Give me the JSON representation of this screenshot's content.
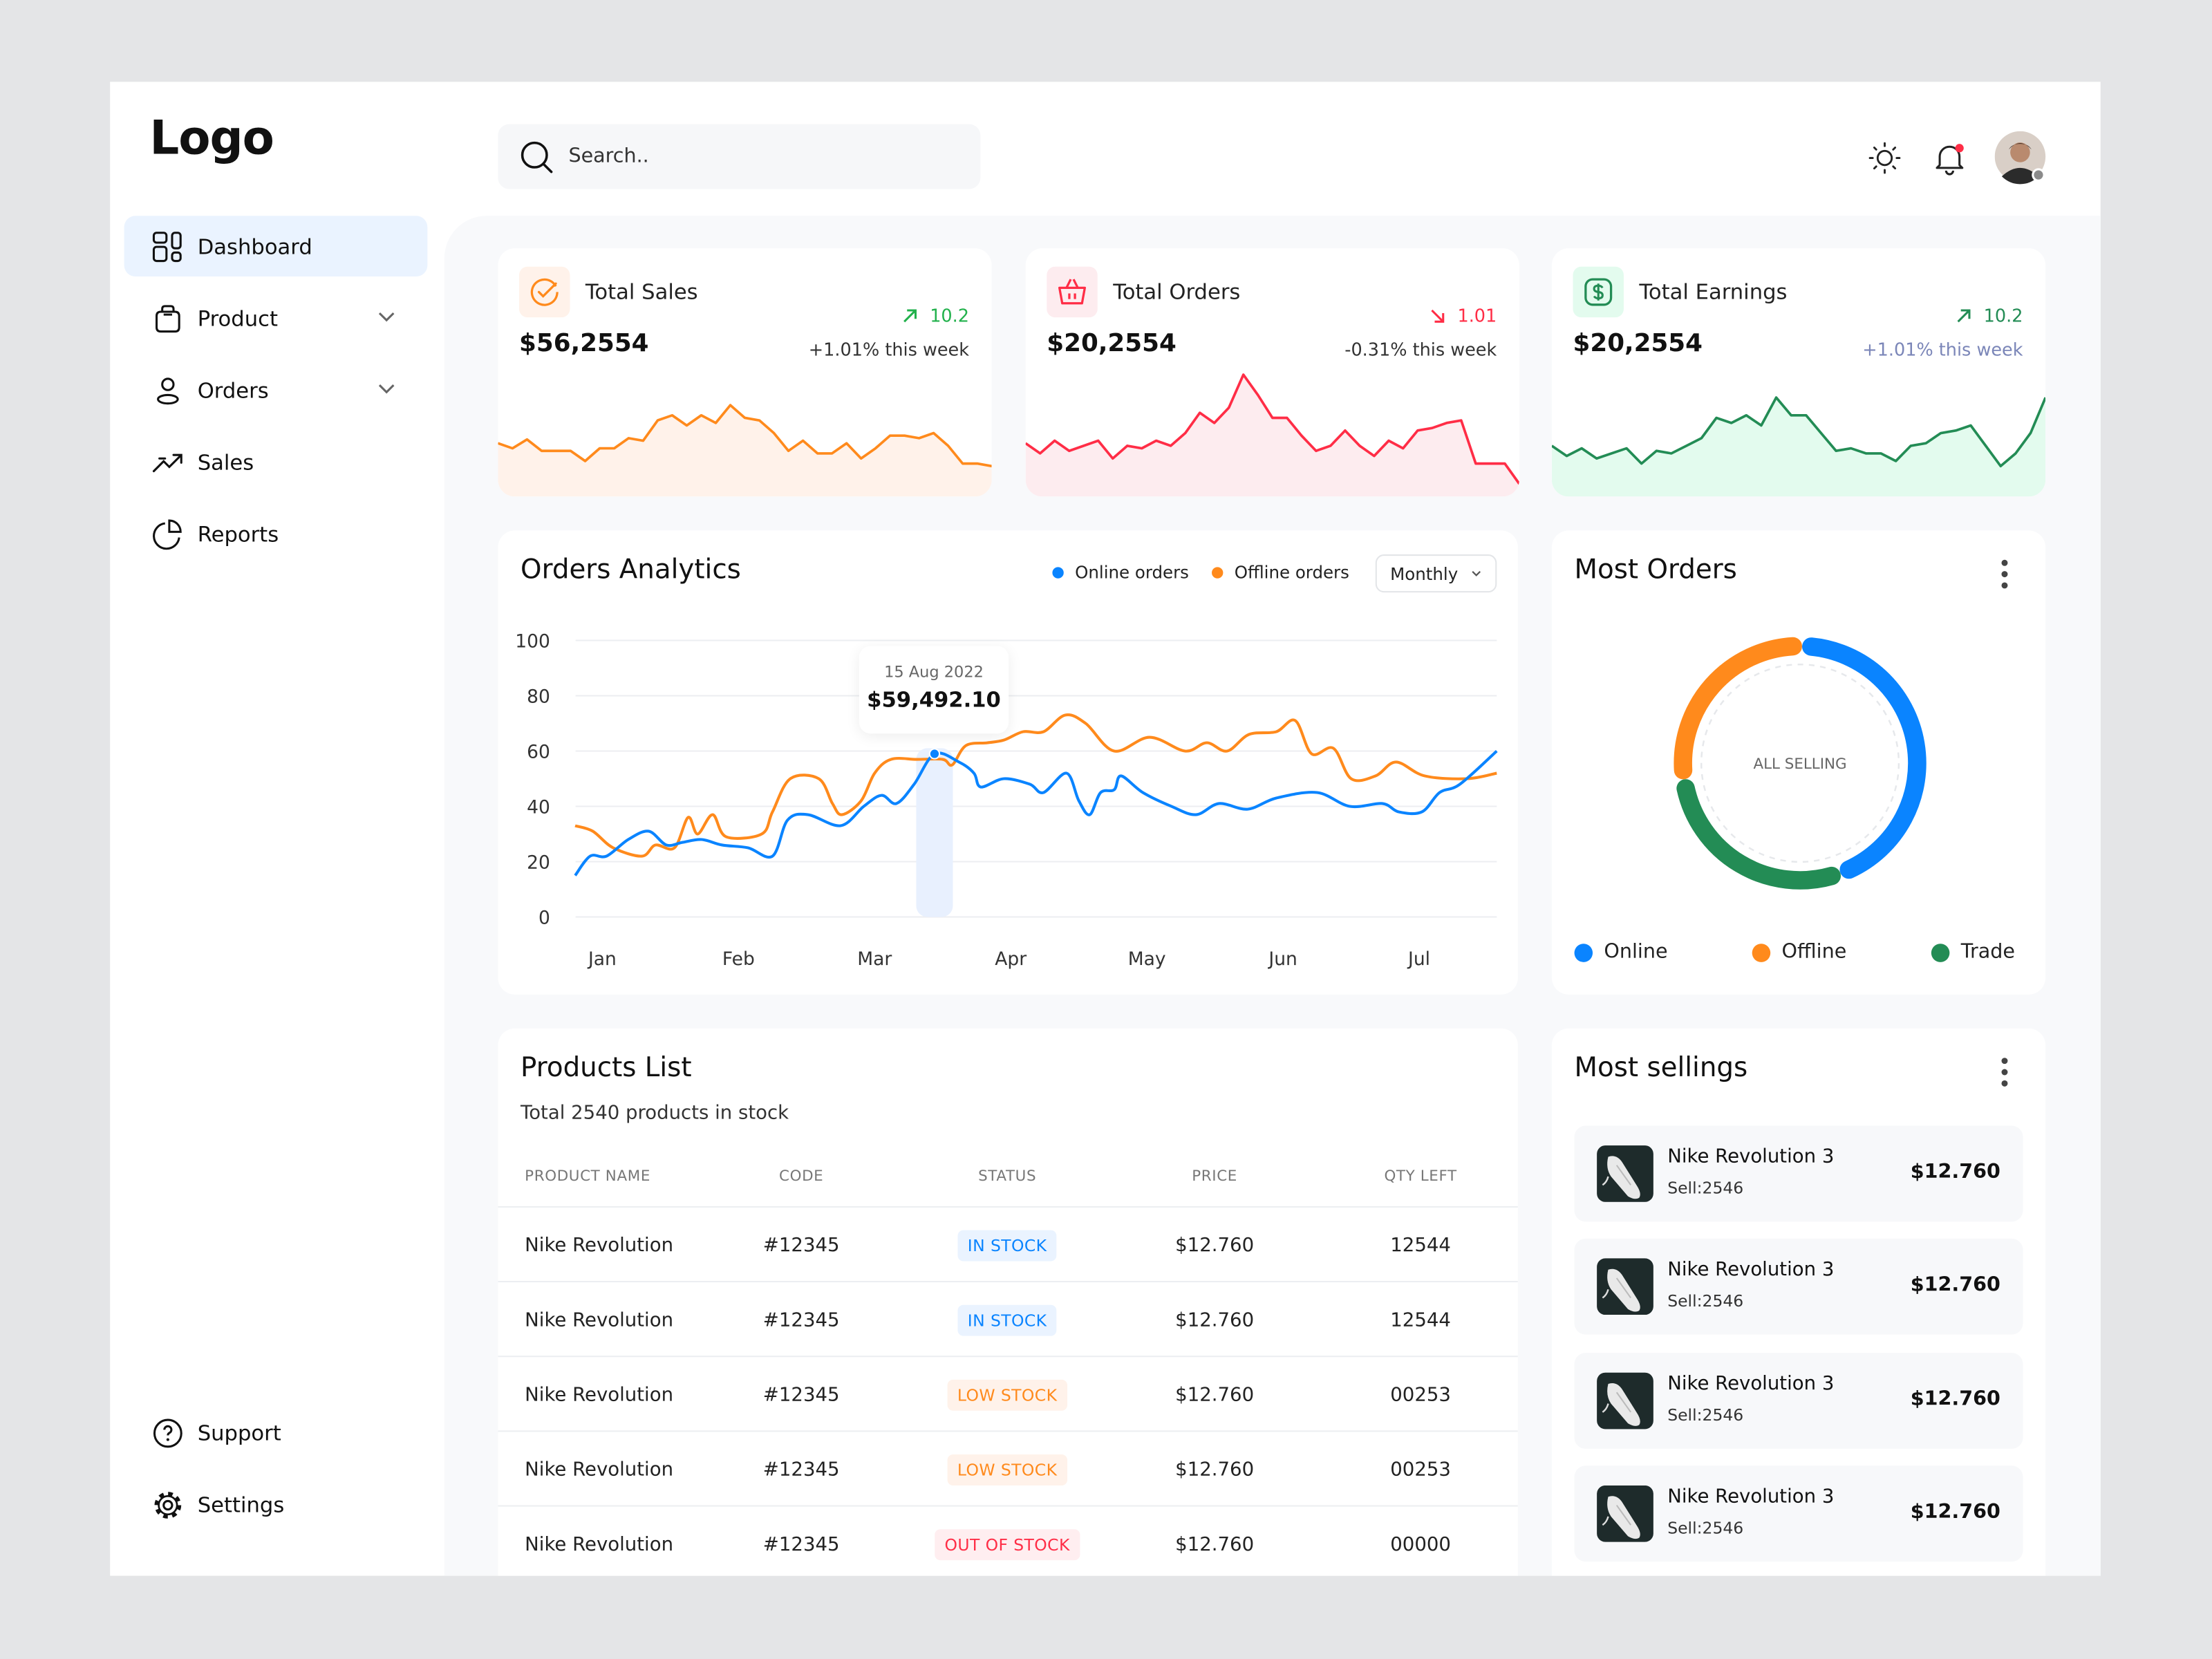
{
  "brand": {
    "logo": "Logo"
  },
  "header": {
    "search_placeholder": "Search..",
    "icons": [
      "sun-icon",
      "bell-icon",
      "avatar"
    ],
    "notification_dot_color": "#ff2d46"
  },
  "sidebar": {
    "items": [
      {
        "label": "Dashboard",
        "icon": "dashboard-icon",
        "active": true
      },
      {
        "label": "Product",
        "icon": "bag-icon",
        "expandable": true
      },
      {
        "label": "Orders",
        "icon": "user-icon",
        "expandable": true
      },
      {
        "label": "Sales",
        "icon": "trend-icon"
      },
      {
        "label": "Reports",
        "icon": "pie-icon"
      }
    ],
    "bottom": [
      {
        "label": "Support",
        "icon": "help-icon"
      },
      {
        "label": "Settings",
        "icon": "gear-icon"
      }
    ]
  },
  "colors": {
    "blue": "#0a84ff",
    "orange": "#ff8a1c",
    "red": "#ff2d46",
    "green": "#238c55",
    "trend_up": "#22b14c",
    "active_bg": "#eaf3ff"
  },
  "stats": [
    {
      "title": "Total Sales",
      "icon": "check-circle-icon",
      "trend_dir": "up",
      "trend": "10.2",
      "value": "$56,2554",
      "sub": "+1.01% this week",
      "color": "#ff8a1c",
      "fill": "#fff2ea",
      "trend_color": "#22b14c",
      "sub_color": "#333333"
    },
    {
      "title": "Total Orders",
      "icon": "basket-icon",
      "trend_dir": "down",
      "trend": "1.01",
      "value": "$20,2554",
      "sub": "-0.31% this week",
      "color": "#ff2d46",
      "fill": "#fdecef",
      "trend_color": "#ff2d46",
      "sub_color": "#333333"
    },
    {
      "title": "Total Earnings",
      "icon": "dollar-icon",
      "trend_dir": "up",
      "trend": "10.2",
      "value": "$20,2554",
      "sub": "+1.01% this week",
      "color": "#238c55",
      "fill": "#e3fbee",
      "trend_color": "#238c55",
      "sub_color": "#7b86b8"
    }
  ],
  "sparklines": [
    [
      42,
      38,
      45,
      36,
      36,
      36,
      28,
      38,
      38,
      46,
      44,
      60,
      64,
      56,
      64,
      58,
      72,
      62,
      60,
      50,
      36,
      44,
      34,
      34,
      42,
      30,
      38,
      48,
      48,
      46,
      50,
      40,
      26,
      26,
      24
    ],
    [
      42,
      34,
      44,
      36,
      40,
      44,
      30,
      40,
      38,
      44,
      40,
      50,
      66,
      58,
      70,
      96,
      80,
      62,
      62,
      48,
      36,
      40,
      52,
      40,
      32,
      44,
      38,
      52,
      54,
      58,
      60,
      26,
      26,
      26,
      10
    ],
    [
      40,
      32,
      38,
      30,
      34,
      38,
      26,
      36,
      34,
      40,
      46,
      62,
      58,
      64,
      56,
      78,
      64,
      64,
      50,
      36,
      38,
      34,
      34,
      28,
      40,
      42,
      50,
      52,
      56,
      40,
      24,
      34,
      50,
      78
    ]
  ],
  "orders_analytics": {
    "title": "Orders Analytics",
    "legend": [
      {
        "label": "Online orders",
        "color": "#0a84ff"
      },
      {
        "label": "Offline orders",
        "color": "#ff8a1c"
      }
    ],
    "period": "Monthly",
    "tooltip": {
      "date": "15 Aug 2022",
      "value": "$59,492.10"
    }
  },
  "chart_data": {
    "type": "line",
    "title": "Orders Analytics",
    "ylim": [
      0,
      100
    ],
    "y_ticks": [
      0,
      20,
      40,
      60,
      80,
      100
    ],
    "x_ticks": [
      {
        "x": 1,
        "label": "Jan"
      },
      {
        "x": 2,
        "label": "Feb"
      },
      {
        "x": 3,
        "label": "Mar"
      },
      {
        "x": 4,
        "label": "Apr"
      },
      {
        "x": 5,
        "label": "May"
      },
      {
        "x": 6,
        "label": "Jun"
      },
      {
        "x": 7,
        "label": "Jul"
      }
    ],
    "grid": true,
    "highlight": {
      "x": 3.44,
      "y": 59,
      "series": "Online orders"
    },
    "series": [
      {
        "name": "Online orders",
        "color": "#0a84ff",
        "points": [
          [
            0.8,
            15
          ],
          [
            0.91,
            22
          ],
          [
            1.03,
            22
          ],
          [
            1.19,
            28
          ],
          [
            1.34,
            31
          ],
          [
            1.47,
            26
          ],
          [
            1.59,
            27
          ],
          [
            1.73,
            28
          ],
          [
            1.88,
            26
          ],
          [
            2.07,
            25
          ],
          [
            2.25,
            22
          ],
          [
            2.36,
            35
          ],
          [
            2.51,
            37
          ],
          [
            2.75,
            33
          ],
          [
            2.92,
            40
          ],
          [
            3.05,
            44
          ],
          [
            3.16,
            41
          ],
          [
            3.29,
            48
          ],
          [
            3.44,
            59
          ],
          [
            3.62,
            56
          ],
          [
            3.73,
            52
          ],
          [
            3.78,
            47
          ],
          [
            3.95,
            50
          ],
          [
            4.14,
            48
          ],
          [
            4.24,
            45
          ],
          [
            4.41,
            52
          ],
          [
            4.5,
            42
          ],
          [
            4.58,
            37
          ],
          [
            4.66,
            45
          ],
          [
            4.76,
            46
          ],
          [
            4.81,
            51
          ],
          [
            4.97,
            45
          ],
          [
            5.18,
            40
          ],
          [
            5.36,
            37
          ],
          [
            5.53,
            41
          ],
          [
            5.74,
            39
          ],
          [
            5.95,
            43
          ],
          [
            6.25,
            45
          ],
          [
            6.49,
            40
          ],
          [
            6.73,
            41
          ],
          [
            6.85,
            38
          ],
          [
            7.02,
            38
          ],
          [
            7.15,
            45
          ],
          [
            7.3,
            48
          ],
          [
            7.57,
            60
          ]
        ]
      },
      {
        "name": "Offline orders",
        "color": "#ff8a1c",
        "points": [
          [
            0.8,
            33
          ],
          [
            0.93,
            31
          ],
          [
            1.08,
            25
          ],
          [
            1.29,
            22
          ],
          [
            1.39,
            26
          ],
          [
            1.53,
            25
          ],
          [
            1.63,
            36
          ],
          [
            1.7,
            30
          ],
          [
            1.81,
            37
          ],
          [
            1.91,
            29
          ],
          [
            2.17,
            30
          ],
          [
            2.25,
            38
          ],
          [
            2.38,
            50
          ],
          [
            2.59,
            50
          ],
          [
            2.69,
            41
          ],
          [
            2.76,
            37
          ],
          [
            2.9,
            42
          ],
          [
            3.0,
            52
          ],
          [
            3.12,
            57
          ],
          [
            3.31,
            57
          ],
          [
            3.5,
            57
          ],
          [
            3.57,
            55
          ],
          [
            3.67,
            62
          ],
          [
            3.83,
            63
          ],
          [
            3.95,
            64
          ],
          [
            4.09,
            67
          ],
          [
            4.24,
            67
          ],
          [
            4.4,
            73
          ],
          [
            4.55,
            70
          ],
          [
            4.76,
            60
          ],
          [
            5.02,
            65
          ],
          [
            5.28,
            60
          ],
          [
            5.44,
            63
          ],
          [
            5.59,
            60
          ],
          [
            5.75,
            66
          ],
          [
            5.95,
            67
          ],
          [
            6.09,
            71
          ],
          [
            6.21,
            59
          ],
          [
            6.37,
            61
          ],
          [
            6.5,
            50
          ],
          [
            6.68,
            51
          ],
          [
            6.83,
            56
          ],
          [
            7.04,
            51
          ],
          [
            7.35,
            50
          ],
          [
            7.57,
            52
          ]
        ]
      }
    ]
  },
  "most_orders": {
    "title": "Most Orders",
    "center_label": "ALL SELLING",
    "segments": [
      {
        "label": "Online",
        "share": 45,
        "color": "#0a84ff"
      },
      {
        "label": "Trade",
        "share": 28,
        "color": "#238c55"
      },
      {
        "label": "Offline",
        "share": 27,
        "color": "#ff8a1c"
      }
    ],
    "legend": [
      {
        "label": "Online",
        "color": "#0a84ff"
      },
      {
        "label": "Offline",
        "color": "#ff8a1c"
      },
      {
        "label": "Trade",
        "color": "#238c55"
      }
    ]
  },
  "products": {
    "title": "Products List",
    "subtitle": "Total 2540 products in stock",
    "columns": [
      "PRODUCT NAME",
      "CODE",
      "STATUS",
      "PRICE",
      "QTY LEFT"
    ],
    "rows": [
      {
        "name": "Nike Revolution",
        "code": "#12345",
        "status": "IN STOCK",
        "status_type": "in",
        "price": "$12.760",
        "qty": "12544"
      },
      {
        "name": "Nike Revolution",
        "code": "#12345",
        "status": "IN STOCK",
        "status_type": "in",
        "price": "$12.760",
        "qty": "12544"
      },
      {
        "name": "Nike Revolution",
        "code": "#12345",
        "status": "LOW STOCK",
        "status_type": "low",
        "price": "$12.760",
        "qty": "00253"
      },
      {
        "name": "Nike Revolution",
        "code": "#12345",
        "status": "LOW STOCK",
        "status_type": "low",
        "price": "$12.760",
        "qty": "00253"
      },
      {
        "name": "Nike Revolution",
        "code": "#12345",
        "status": "OUT OF STOCK",
        "status_type": "out",
        "price": "$12.760",
        "qty": "00000"
      }
    ]
  },
  "most_sellings": {
    "title": "Most sellings",
    "items": [
      {
        "name": "Nike Revolution 3",
        "sell": "Sell:2546",
        "price": "$12.760"
      },
      {
        "name": "Nike Revolution 3",
        "sell": "Sell:2546",
        "price": "$12.760"
      },
      {
        "name": "Nike Revolution 3",
        "sell": "Sell:2546",
        "price": "$12.760"
      },
      {
        "name": "Nike Revolution 3",
        "sell": "Sell:2546",
        "price": "$12.760"
      }
    ]
  }
}
